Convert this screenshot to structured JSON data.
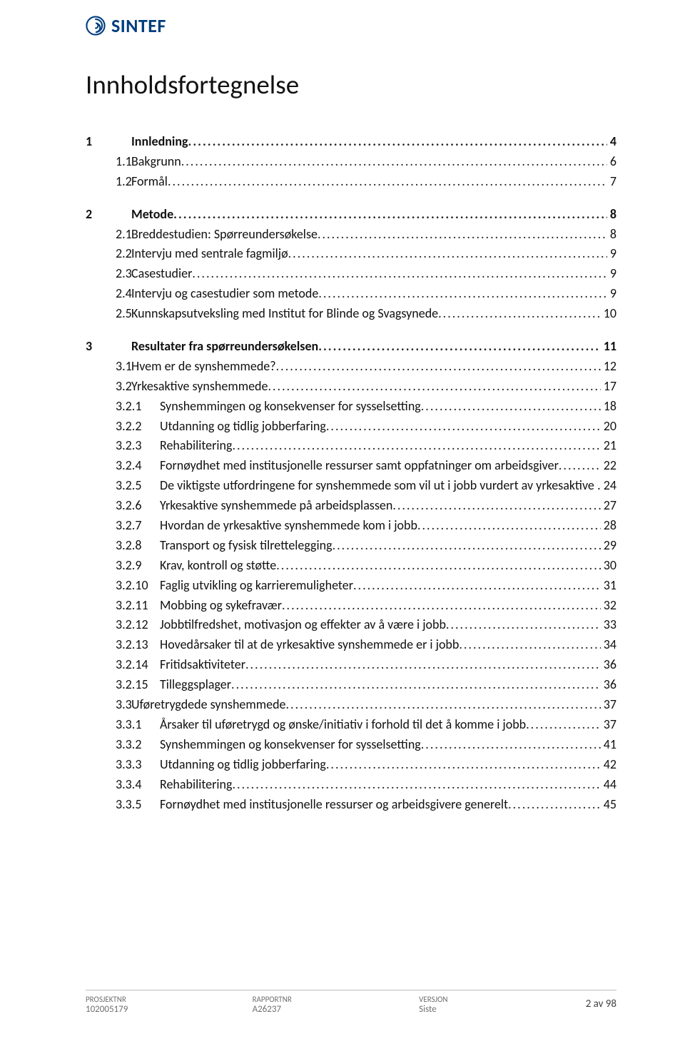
{
  "brand": {
    "name": "SINTEF",
    "color": "#003e7e"
  },
  "title": "Innholdsfortegnelse",
  "toc": [
    {
      "lvl": 1,
      "num": "1",
      "label": "Innledning",
      "page": "4"
    },
    {
      "lvl": 2,
      "num": "1.1",
      "label": "Bakgrunn",
      "page": "6"
    },
    {
      "lvl": 2,
      "num": "1.2",
      "label": "Formål",
      "page": "7"
    },
    {
      "lvl": 1,
      "num": "2",
      "label": "Metode",
      "page": "8"
    },
    {
      "lvl": 2,
      "num": "2.1",
      "label": "Breddestudien: Spørreundersøkelse",
      "page": "8"
    },
    {
      "lvl": 2,
      "num": "2.2",
      "label": "Intervju med sentrale fagmiljø",
      "page": "9"
    },
    {
      "lvl": 2,
      "num": "2.3",
      "label": "Casestudier",
      "page": "9"
    },
    {
      "lvl": 2,
      "num": "2.4",
      "label": "Intervju og casestudier som metode",
      "page": "9"
    },
    {
      "lvl": 2,
      "num": "2.5",
      "label": "Kunnskapsutveksling med Institut for Blinde og Svagsynede",
      "page": "10"
    },
    {
      "lvl": 1,
      "num": "3",
      "label": "Resultater fra spørreundersøkelsen",
      "page": "11"
    },
    {
      "lvl": 2,
      "num": "3.1",
      "label": "Hvem er de synshemmede?",
      "page": "12"
    },
    {
      "lvl": 2,
      "num": "3.2",
      "label": "Yrkesaktive synshemmede",
      "page": "17"
    },
    {
      "lvl": 3,
      "num": "3.2.1",
      "label": "Synshemmingen og konsekvenser for sysselsetting",
      "page": "18"
    },
    {
      "lvl": 3,
      "num": "3.2.2",
      "label": "Utdanning og tidlig jobberfaring",
      "page": "20"
    },
    {
      "lvl": 3,
      "num": "3.2.3",
      "label": "Rehabilitering",
      "page": "21"
    },
    {
      "lvl": 3,
      "num": "3.2.4",
      "label": "Fornøydhet med institusjonelle ressurser samt oppfatninger om arbeidsgiver",
      "page": "22"
    },
    {
      "lvl": 3,
      "num": "3.2.5",
      "label": "De viktigste utfordringene for synshemmede som vil ut i jobb vurdert av yrkesaktive",
      "page": ". 24"
    },
    {
      "lvl": 3,
      "num": "3.2.6",
      "label": "Yrkesaktive synshemmede på arbeidsplassen",
      "page": "27"
    },
    {
      "lvl": 3,
      "num": "3.2.7",
      "label": "Hvordan de yrkesaktive synshemmede kom i jobb",
      "page": "28"
    },
    {
      "lvl": 3,
      "num": "3.2.8",
      "label": "Transport og fysisk tilrettelegging",
      "page": "29"
    },
    {
      "lvl": 3,
      "num": "3.2.9",
      "label": "Krav, kontroll og støtte",
      "page": "30"
    },
    {
      "lvl": 3,
      "num": "3.2.10",
      "label": "Faglig utvikling og karrieremuligheter",
      "page": "31"
    },
    {
      "lvl": 3,
      "num": "3.2.11",
      "label": "Mobbing og sykefravær",
      "page": "32"
    },
    {
      "lvl": 3,
      "num": "3.2.12",
      "label": "Jobbtilfredshet, motivasjon og effekter av å være i jobb",
      "page": "33"
    },
    {
      "lvl": 3,
      "num": "3.2.13",
      "label": "Hovedårsaker til at de yrkesaktive synshemmede er i jobb",
      "page": "34"
    },
    {
      "lvl": 3,
      "num": "3.2.14",
      "label": "Fritidsaktiviteter",
      "page": "36"
    },
    {
      "lvl": 3,
      "num": "3.2.15",
      "label": "Tilleggsplager",
      "page": "36"
    },
    {
      "lvl": 2,
      "num": "3.3",
      "label": "Uføretrygdede synshemmede",
      "page": "37"
    },
    {
      "lvl": 3,
      "num": "3.3.1",
      "label": "Årsaker til uføretrygd og ønske/initiativ i forhold til det å komme i jobb",
      "page": "37"
    },
    {
      "lvl": 3,
      "num": "3.3.2",
      "label": "Synshemmingen og konsekvenser for sysselsetting",
      "page": "41"
    },
    {
      "lvl": 3,
      "num": "3.3.3",
      "label": "Utdanning og tidlig jobberfaring",
      "page": "42"
    },
    {
      "lvl": 3,
      "num": "3.3.4",
      "label": "Rehabilitering",
      "page": "44"
    },
    {
      "lvl": 3,
      "num": "3.3.5",
      "label": "Fornøydhet med institusjonelle ressurser og arbeidsgivere generelt",
      "page": "45"
    }
  ],
  "footer": {
    "col1_hd": "PROSJEKTNR",
    "col1_val": "102005179",
    "col2_hd": "RAPPORTNR",
    "col2_val": "A26237",
    "col3_hd": "VERSJON",
    "col3_val": "Siste",
    "page": "2 av 98"
  }
}
